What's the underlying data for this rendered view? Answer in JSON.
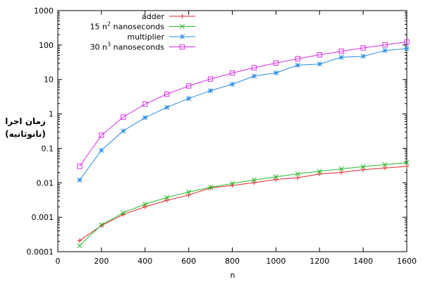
{
  "chart_data": {
    "type": "line",
    "title": "",
    "xlabel": "n",
    "ylabel_line1": "زمان اجرا",
    "ylabel_line2": "(نانوثانیه)",
    "x_scale": "linear",
    "y_scale": "log",
    "xlim": [
      0,
      1600
    ],
    "ylim": [
      0.0001,
      1000
    ],
    "x_ticks": [
      0,
      200,
      400,
      600,
      800,
      1000,
      1200,
      1400,
      1600
    ],
    "x_tick_labels": [
      "0",
      "200",
      "400",
      "600",
      "800",
      "1000",
      "1200",
      "1400",
      "1600"
    ],
    "y_ticks": [
      0.0001,
      0.001,
      0.01,
      0.1,
      1,
      10,
      100,
      1000
    ],
    "y_tick_labels": [
      "0.0001",
      "0.001",
      "0.01",
      "0.1",
      "1",
      "10",
      "100",
      "1000"
    ],
    "grid": false,
    "legend_position": "top-right",
    "series": [
      {
        "name": "adder",
        "legend_parts": [
          "adder"
        ],
        "color": "#e8262b",
        "marker": "plus",
        "x": [
          100,
          200,
          300,
          400,
          500,
          600,
          700,
          800,
          900,
          1000,
          1100,
          1200,
          1300,
          1400,
          1500,
          1600
        ],
        "y": [
          0.00021,
          0.00057,
          0.0012,
          0.002,
          0.0031,
          0.0044,
          0.0071,
          0.0084,
          0.0101,
          0.0125,
          0.014,
          0.018,
          0.02,
          0.024,
          0.027,
          0.03
        ]
      },
      {
        "name": "15 n^2 nanoseconds",
        "legend_parts": [
          "15 n",
          "2",
          " nanoseconds"
        ],
        "color": "#28b828",
        "marker": "x",
        "x": [
          100,
          200,
          300,
          400,
          500,
          600,
          700,
          800,
          900,
          1000,
          1100,
          1200,
          1300,
          1400,
          1500,
          1600
        ],
        "y": [
          0.00015,
          0.0006,
          0.00135,
          0.0024,
          0.00375,
          0.0054,
          0.00735,
          0.0096,
          0.01215,
          0.015,
          0.01815,
          0.0216,
          0.02535,
          0.0294,
          0.03375,
          0.0384
        ]
      },
      {
        "name": "multiplier",
        "legend_parts": [
          "multiplier"
        ],
        "color": "#2a8ee8",
        "marker": "star",
        "x": [
          100,
          200,
          300,
          400,
          500,
          600,
          700,
          800,
          900,
          1000,
          1100,
          1200,
          1300,
          1400,
          1500,
          1600
        ],
        "y": [
          0.012,
          0.088,
          0.32,
          0.78,
          1.55,
          2.8,
          4.7,
          7.3,
          12.5,
          15.5,
          26,
          28,
          44,
          47,
          69,
          79
        ]
      },
      {
        "name": "30 n^3 nanoseconds",
        "legend_parts": [
          "30 n",
          "3",
          " nanoseconds"
        ],
        "color": "#d62ee8",
        "marker": "square",
        "x": [
          100,
          200,
          300,
          400,
          500,
          600,
          700,
          800,
          900,
          1000,
          1100,
          1200,
          1300,
          1400,
          1500,
          1600
        ],
        "y": [
          0.03,
          0.24,
          0.81,
          1.92,
          3.75,
          6.48,
          10.29,
          15.36,
          21.87,
          30,
          39.93,
          51.84,
          65.91,
          82.32,
          101.25,
          122.88
        ]
      }
    ]
  }
}
